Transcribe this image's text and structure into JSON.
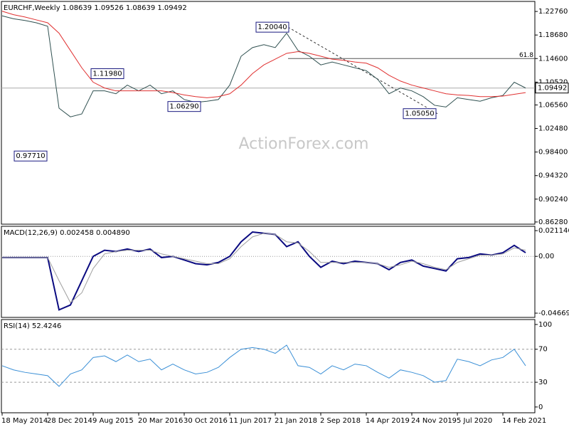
{
  "chart_data": [
    {
      "type": "line",
      "title": "EURCHF,Weekly 1.08639 1.09526 1.08639 1.09492",
      "categories": [
        "18 May 2014",
        null,
        null,
        null,
        "28 Dec 2014",
        null,
        null,
        null,
        "9 Aug 2015",
        null,
        null,
        null,
        "20 Mar 2016",
        null,
        null,
        null,
        "30 Oct 2016",
        null,
        null,
        null,
        "11 Jun 2017",
        null,
        null,
        null,
        "21 Jan 2018",
        null,
        null,
        null,
        "2 Sep 2018",
        null,
        null,
        null,
        "14 Apr 2019",
        null,
        null,
        null,
        "24 Nov 2019",
        null,
        null,
        null,
        "5 Jul 2020",
        null,
        null,
        null,
        "14 Feb 2021",
        null,
        null
      ],
      "series": [
        {
          "color": "#2f5050",
          "values": [
            1.22,
            1.215,
            1.212,
            1.208,
            1.202,
            1.06,
            1.045,
            1.05,
            1.09,
            1.09,
            1.085,
            1.1,
            1.09,
            1.1,
            1.085,
            1.09,
            1.075,
            1.07,
            1.072,
            1.075,
            1.1,
            1.15,
            1.165,
            1.17,
            1.165,
            1.19,
            1.16,
            1.15,
            1.135,
            1.14,
            1.135,
            1.13,
            1.125,
            1.11,
            1.085,
            1.095,
            1.09,
            1.08,
            1.065,
            1.062,
            1.078,
            1.075,
            1.072,
            1.078,
            1.082,
            1.105,
            1.095
          ]
        },
        {
          "color": "#e03030",
          "values": [
            1.228,
            1.222,
            1.218,
            1.213,
            1.208,
            1.19,
            1.16,
            1.13,
            1.105,
            1.095,
            1.09,
            1.09,
            1.09,
            1.09,
            1.09,
            1.087,
            1.083,
            1.08,
            1.078,
            1.08,
            1.085,
            1.1,
            1.12,
            1.135,
            1.145,
            1.155,
            1.158,
            1.155,
            1.15,
            1.145,
            1.143,
            1.14,
            1.138,
            1.13,
            1.117,
            1.107,
            1.1,
            1.095,
            1.09,
            1.085,
            1.083,
            1.082,
            1.08,
            1.08,
            1.081,
            1.084,
            1.087
          ]
        }
      ],
      "ylim": [
        0.859,
        1.245
      ],
      "yticks": [
        {
          "value": 1.2276,
          "label": "1.22760"
        },
        {
          "value": 1.1868,
          "label": "1.18680"
        },
        {
          "value": 1.146,
          "label": "1.14600"
        },
        {
          "value": 1.1052,
          "label": "1.10520"
        },
        {
          "value": 1.0656,
          "label": "1.06560"
        },
        {
          "value": 1.0248,
          "label": "1.02480"
        },
        {
          "value": 0.984,
          "label": "0.98400"
        },
        {
          "value": 0.9432,
          "label": "0.94320"
        },
        {
          "value": 0.9024,
          "label": "0.90240"
        },
        {
          "value": 0.8628,
          "label": "0.86280"
        }
      ],
      "annotations": [
        {
          "value": 1.2004,
          "label": "1.20040"
        },
        {
          "value": 1.1198,
          "label": "1.11980"
        },
        {
          "value": 1.0629,
          "label": "1.06290"
        },
        {
          "value": 1.0505,
          "label": "1.05050"
        },
        {
          "value": 0.9771,
          "label": "0.97710"
        }
      ],
      "fib_level": {
        "value": 1.146,
        "label": "61.8"
      },
      "last_price": {
        "value": 1.09492,
        "label": "1.09492"
      },
      "watermark": "ActionForex.com"
    },
    {
      "type": "line",
      "title": "MACD(12,26,9) 0.002458 0.004890",
      "series": [
        {
          "color": "#0a0a80",
          "values": [
            -0.001,
            -0.001,
            -0.001,
            -0.001,
            -0.001,
            -0.044,
            -0.04,
            -0.02,
            0.0,
            0.005,
            0.004,
            0.006,
            0.004,
            0.006,
            -0.001,
            0.0,
            -0.003,
            -0.006,
            -0.007,
            -0.005,
            0.0,
            0.012,
            0.02,
            0.019,
            0.018,
            0.008,
            0.012,
            0.0,
            -0.009,
            -0.004,
            -0.006,
            -0.004,
            -0.005,
            -0.006,
            -0.011,
            -0.005,
            -0.003,
            -0.008,
            -0.01,
            -0.012,
            -0.002,
            -0.001,
            0.002,
            0.001,
            0.003,
            0.009,
            0.003
          ]
        },
        {
          "color": "#a0a0a0",
          "values": [
            -0.001,
            -0.001,
            -0.001,
            -0.001,
            -0.001,
            -0.02,
            -0.038,
            -0.03,
            -0.01,
            0.002,
            0.004,
            0.005,
            0.005,
            0.005,
            0.002,
            0.0,
            -0.002,
            -0.004,
            -0.006,
            -0.006,
            -0.002,
            0.008,
            0.016,
            0.019,
            0.018,
            0.012,
            0.011,
            0.004,
            -0.005,
            -0.005,
            -0.005,
            -0.005,
            -0.005,
            -0.006,
            -0.009,
            -0.007,
            -0.004,
            -0.006,
            -0.009,
            -0.011,
            -0.005,
            -0.002,
            0.001,
            0.001,
            0.002,
            0.007,
            0.005
          ]
        }
      ],
      "ylim": [
        -0.0502,
        0.0247
      ],
      "yticks": [
        0.021146,
        {
          "value": 0,
          "label": "0.00"
        },
        -0.046699
      ],
      "levels": [
        0
      ]
    },
    {
      "type": "line",
      "title": "RSI(14) 52.4246",
      "series": [
        {
          "color": "#3a8fd6",
          "values": [
            50,
            45,
            42,
            40,
            38,
            25,
            40,
            45,
            60,
            62,
            55,
            63,
            55,
            58,
            45,
            52,
            45,
            40,
            42,
            48,
            60,
            70,
            72,
            70,
            65,
            75,
            50,
            48,
            40,
            50,
            45,
            52,
            50,
            42,
            35,
            45,
            42,
            38,
            30,
            32,
            58,
            55,
            50,
            57,
            60,
            70,
            50
          ]
        }
      ],
      "ylim": [
        -7,
        106
      ],
      "yticks": [
        100,
        70,
        30,
        0
      ],
      "levels": [
        70,
        30
      ]
    }
  ]
}
